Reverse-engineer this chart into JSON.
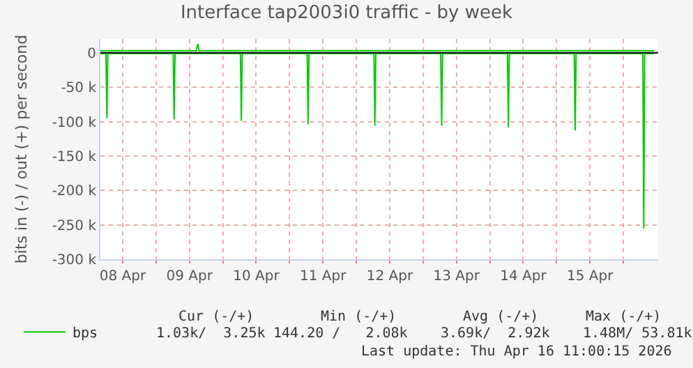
{
  "chart_data": {
    "type": "line",
    "title": "Interface tap2003i0 traffic - by week",
    "ylabel": "bits in (-) / out (+) per second",
    "series": [
      {
        "name": "bps",
        "color": "#00cc00",
        "x": [
          "2026-04-08T04:00",
          "2026-04-08T06:00",
          "2026-04-08T06:20",
          "2026-04-08T06:40",
          "2026-04-09T06:10",
          "2026-04-09T06:30",
          "2026-04-09T06:50",
          "2026-04-10T06:20",
          "2026-04-10T06:40",
          "2026-04-10T07:00",
          "2026-04-11T06:20",
          "2026-04-11T06:40",
          "2026-04-11T07:00",
          "2026-04-12T06:20",
          "2026-04-12T06:40",
          "2026-04-12T07:00",
          "2026-04-13T06:20",
          "2026-04-13T06:40",
          "2026-04-13T07:00",
          "2026-04-14T06:20",
          "2026-04-14T06:40",
          "2026-04-14T07:00",
          "2026-04-15T06:20",
          "2026-04-15T06:40",
          "2026-04-15T07:00",
          "2026-04-16T07:00",
          "2026-04-16T07:20",
          "2026-04-16T07:40",
          "2026-04-16T11:00"
        ],
        "values": [
          -1000,
          -1000,
          -95000,
          -1000,
          -1000,
          -97000,
          -1000,
          -1000,
          -99000,
          -1000,
          -1000,
          -104000,
          -1000,
          -1000,
          -106000,
          -1000,
          -1000,
          -106000,
          -1000,
          -1000,
          -108000,
          -1000,
          -1000,
          -113000,
          -1000,
          -1000,
          -255000,
          -1000,
          -1000
        ]
      },
      {
        "color": "#00cc00",
        "x": [
          "2026-04-08T04:00",
          "2026-04-09T14:30",
          "2026-04-09T15:00",
          "2026-04-09T15:30",
          "2026-04-16T11:00"
        ],
        "values": [
          3000,
          3000,
          13000,
          3000,
          3000
        ]
      }
    ],
    "xlim": [
      "2026-04-08T04:00",
      "2026-04-16T12:30"
    ],
    "xticks": [
      {
        "value": "2026-04-08T12:00",
        "label": "08 Apr"
      },
      {
        "value": "2026-04-09T00:00",
        "label": null
      },
      {
        "value": "2026-04-09T12:00",
        "label": "09 Apr"
      },
      {
        "value": "2026-04-10T00:00",
        "label": null
      },
      {
        "value": "2026-04-10T12:00",
        "label": "10 Apr"
      },
      {
        "value": "2026-04-11T00:00",
        "label": null
      },
      {
        "value": "2026-04-11T12:00",
        "label": "11 Apr"
      },
      {
        "value": "2026-04-12T00:00",
        "label": null
      },
      {
        "value": "2026-04-12T12:00",
        "label": "12 Apr"
      },
      {
        "value": "2026-04-13T00:00",
        "label": null
      },
      {
        "value": "2026-04-13T12:00",
        "label": "13 Apr"
      },
      {
        "value": "2026-04-14T00:00",
        "label": null
      },
      {
        "value": "2026-04-14T12:00",
        "label": "14 Apr"
      },
      {
        "value": "2026-04-15T00:00",
        "label": null
      },
      {
        "value": "2026-04-15T12:00",
        "label": "15 Apr"
      },
      {
        "value": "2026-04-16T00:00",
        "label": null
      }
    ],
    "ylim": [
      -300000,
      20000
    ],
    "yticks": [
      0,
      {
        "value": -50000,
        "label": "-50 k"
      },
      {
        "value": -100000,
        "label": "-100 k"
      },
      {
        "value": -150000,
        "label": "-150 k"
      },
      {
        "value": -200000,
        "label": "-200 k"
      },
      {
        "value": -250000,
        "label": "-250 k"
      },
      {
        "value": -300000,
        "label": "-300 k"
      }
    ],
    "ref_lines": [
      {
        "axis": "y",
        "value": 0,
        "color": "#000000"
      }
    ],
    "grid": true,
    "legend": "bottom left",
    "marker": "none",
    "line_style": "solid",
    "annotations": [
      "Cur (-/+)",
      "Min (-/+)",
      "Avg (-/+)",
      "Max (-/+)",
      "1.03k/  3.25k",
      "144.20 /   2.08k",
      "3.69k/  2.92k",
      "1.48M/ 53.81k",
      "Last update: Thu Apr 16 11:00:15 2026"
    ]
  }
}
